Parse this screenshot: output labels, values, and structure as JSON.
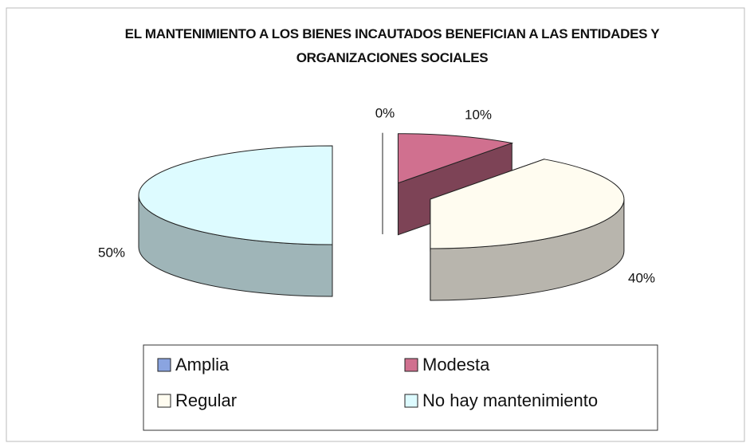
{
  "chart_data": {
    "type": "pie3d",
    "title": "EL MANTENIMIENTO A LOS BIENES INCAUTADOS BENEFICIAN A LAS ENTIDADES Y ORGANIZACIONES SOCIALES",
    "categories": [
      "Amplia",
      "Modesta",
      "Regular",
      "No hay mantenimiento"
    ],
    "values": [
      0,
      10,
      40,
      50
    ],
    "value_labels": [
      "0%",
      "10%",
      "40%",
      "50%"
    ],
    "colors": [
      "#8aa4e0",
      "#d0708f",
      "#fffcf0",
      "#ddfbff"
    ],
    "legend": "bottom"
  }
}
